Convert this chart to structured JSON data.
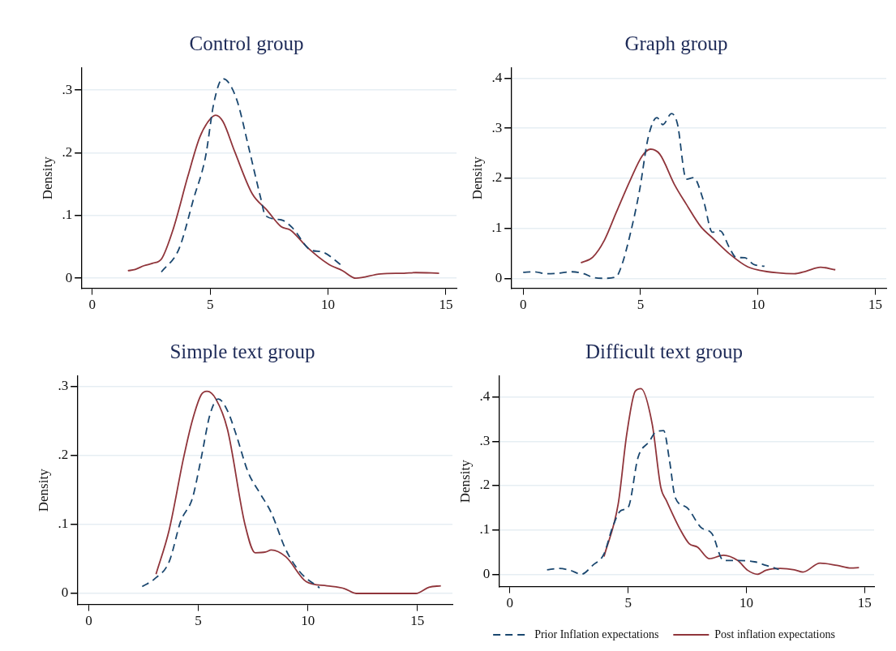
{
  "chart_data": [
    {
      "type": "line",
      "title": "Control group",
      "ylabel": "Density",
      "xlim": [
        -0.47,
        15.45
      ],
      "ylim": [
        -0.016,
        0.335
      ],
      "xticks": [
        0,
        5,
        10,
        15
      ],
      "yticks": [
        {
          "value": 0,
          "label": "0"
        },
        {
          "value": 0.1,
          "label": ".1"
        },
        {
          "value": 0.2,
          "label": ".2"
        },
        {
          "value": 0.3,
          "label": ".3"
        }
      ],
      "grid": "y",
      "marker": "none",
      "series": [
        {
          "color": "#1a476f",
          "line_style": "dashed",
          "x": [
            2.93,
            3.68,
            4.3,
            4.8,
            5.16,
            5.53,
            5.78,
            6.16,
            6.65,
            7.15,
            7.34,
            8.02,
            8.5,
            9.26,
            9.75,
            10.56
          ],
          "values": [
            0.01,
            0.047,
            0.127,
            0.193,
            0.28,
            0.318,
            0.312,
            0.281,
            0.206,
            0.127,
            0.1,
            0.093,
            0.08,
            0.045,
            0.042,
            0.021
          ]
        },
        {
          "color": "#90353b",
          "line_style": "solid",
          "x": [
            1.51,
            1.82,
            2.19,
            2.57,
            2.94,
            3.43,
            4.05,
            4.55,
            4.92,
            5.23,
            5.54,
            6.04,
            6.78,
            7.4,
            8.02,
            8.4,
            9.13,
            10,
            10.62,
            11.18,
            12.23,
            13.22,
            13.72,
            14.71
          ],
          "values": [
            0.012,
            0.014,
            0.02,
            0.024,
            0.031,
            0.078,
            0.162,
            0.224,
            0.25,
            0.26,
            0.25,
            0.202,
            0.135,
            0.109,
            0.082,
            0.077,
            0.049,
            0.023,
            0.012,
            0,
            0.007,
            0.008,
            0.009,
            0.008
          ]
        }
      ]
    },
    {
      "type": "line",
      "title": "Graph group",
      "ylabel": "Density",
      "xlim": [
        -0.52,
        15.47
      ],
      "ylim": [
        -0.02,
        0.42
      ],
      "xticks": [
        0,
        5,
        10,
        15
      ],
      "yticks": [
        {
          "value": 0,
          "label": "0"
        },
        {
          "value": 0.1,
          "label": ".1"
        },
        {
          "value": 0.2,
          "label": ".2"
        },
        {
          "value": 0.3,
          "label": ".3"
        },
        {
          "value": 0.4,
          "label": ".4"
        }
      ],
      "grid": "y",
      "marker": "none",
      "series": [
        {
          "color": "#1a476f",
          "line_style": "dashed",
          "x": [
            0,
            0.47,
            0.97,
            1.47,
            2.09,
            2.59,
            2.96,
            3.46,
            3.96,
            4.2,
            4.58,
            4.96,
            5.33,
            5.7,
            5.95,
            6.32,
            6.57,
            6.95,
            7.26,
            7.69,
            8.06,
            8.38,
            8.81,
            9.06,
            9.44,
            9.81,
            10.28
          ],
          "values": [
            0.012,
            0.013,
            0.009,
            0.01,
            0.013,
            0.009,
            0.002,
            0,
            0.003,
            0.026,
            0.092,
            0.176,
            0.282,
            0.321,
            0.307,
            0.329,
            0.309,
            0.198,
            0.201,
            0.154,
            0.092,
            0.095,
            0.059,
            0.042,
            0.041,
            0.028,
            0.024
          ]
        },
        {
          "color": "#90353b",
          "line_style": "solid",
          "x": [
            2.46,
            2.96,
            3.46,
            3.96,
            4.58,
            5.08,
            5.43,
            5.82,
            6.45,
            6.95,
            7.57,
            8.06,
            8.81,
            9.56,
            10.06,
            10.8,
            11.55,
            12.05,
            12.67,
            13.3
          ],
          "values": [
            0.031,
            0.042,
            0.076,
            0.131,
            0.198,
            0.245,
            0.258,
            0.248,
            0.187,
            0.148,
            0.103,
            0.081,
            0.048,
            0.023,
            0.016,
            0.011,
            0.009,
            0.014,
            0.022,
            0.017
          ]
        }
      ]
    },
    {
      "type": "line",
      "title": "Simple text group",
      "ylabel": "Density",
      "xlim": [
        -0.53,
        16.6
      ],
      "ylim": [
        -0.016,
        0.315
      ],
      "xticks": [
        0,
        5,
        10,
        15
      ],
      "yticks": [
        {
          "value": 0,
          "label": "0"
        },
        {
          "value": 0.1,
          "label": ".1"
        },
        {
          "value": 0.2,
          "label": ".2"
        },
        {
          "value": 0.3,
          "label": ".3"
        }
      ],
      "grid": "y",
      "marker": "none",
      "series": [
        {
          "color": "#1a476f",
          "line_style": "dashed",
          "x": [
            2.44,
            3,
            3.67,
            4.2,
            4.73,
            5.13,
            5.53,
            5.91,
            6.33,
            6.73,
            7.27,
            7.8,
            8.33,
            9,
            9.67,
            10.53
          ],
          "values": [
            0.01,
            0.021,
            0.046,
            0.105,
            0.138,
            0.196,
            0.259,
            0.282,
            0.265,
            0.23,
            0.176,
            0.146,
            0.117,
            0.063,
            0.03,
            0.008
          ]
        },
        {
          "color": "#90353b",
          "line_style": "solid",
          "x": [
            3.07,
            3.67,
            4.33,
            4.73,
            5.13,
            5.4,
            5.8,
            6.33,
            7.13,
            7.6,
            8.07,
            8.33,
            9,
            9.93,
            10.87,
            11.67,
            12.2,
            14.93,
            15.53,
            16.07
          ],
          "values": [
            0.028,
            0.092,
            0.197,
            0.251,
            0.288,
            0.293,
            0.282,
            0.238,
            0.1,
            0.059,
            0.06,
            0.063,
            0.053,
            0.017,
            0.011,
            0.007,
            0,
            0,
            0.009,
            0.011
          ]
        }
      ]
    },
    {
      "type": "line",
      "title": "Difficult text group",
      "ylabel": "Density",
      "xlim": [
        -0.47,
        15.4
      ],
      "ylim": [
        -0.028,
        0.447
      ],
      "xticks": [
        0,
        5,
        10,
        15
      ],
      "yticks": [
        {
          "value": 0,
          "label": "0"
        },
        {
          "value": 0.1,
          "label": ".1"
        },
        {
          "value": 0.2,
          "label": ".2"
        },
        {
          "value": 0.3,
          "label": ".3"
        },
        {
          "value": 0.4,
          "label": ".4"
        }
      ],
      "grid": "y",
      "marker": "none",
      "legend": "bottom",
      "series": [
        {
          "name": "Prior Inflation expectations",
          "color": "#1a476f",
          "line_style": "dashed",
          "x": [
            1.57,
            2.06,
            2.54,
            3.02,
            3.5,
            3.98,
            4.34,
            4.7,
            5,
            5.42,
            5.9,
            6.15,
            6.5,
            6.75,
            6.99,
            7.47,
            8.07,
            8.55,
            9.03,
            9.63,
            10.35,
            10.83,
            11.37
          ],
          "values": [
            0.01,
            0.013,
            0.009,
            0,
            0.02,
            0.046,
            0.106,
            0.144,
            0.151,
            0.264,
            0.3,
            0.32,
            0.324,
            0.256,
            0.173,
            0.151,
            0.106,
            0.091,
            0.031,
            0.031,
            0.028,
            0.02,
            0.011
          ]
        },
        {
          "name": "Post inflation expectations",
          "color": "#90353b",
          "line_style": "solid",
          "x": [
            3.98,
            4.58,
            4.94,
            5.3,
            5.54,
            6.02,
            6.38,
            6.62,
            7.22,
            7.58,
            7.94,
            8.43,
            9.03,
            9.63,
            10.05,
            10.47,
            10.83,
            11.43,
            12.03,
            12.39,
            13.11,
            13.83,
            14.43,
            14.76
          ],
          "values": [
            0.04,
            0.159,
            0.316,
            0.413,
            0.419,
            0.338,
            0.196,
            0.166,
            0.099,
            0.069,
            0.061,
            0.035,
            0.043,
            0.031,
            0.009,
            0,
            0.009,
            0.013,
            0.01,
            0.005,
            0.025,
            0.02,
            0.014,
            0.015
          ]
        }
      ]
    }
  ]
}
